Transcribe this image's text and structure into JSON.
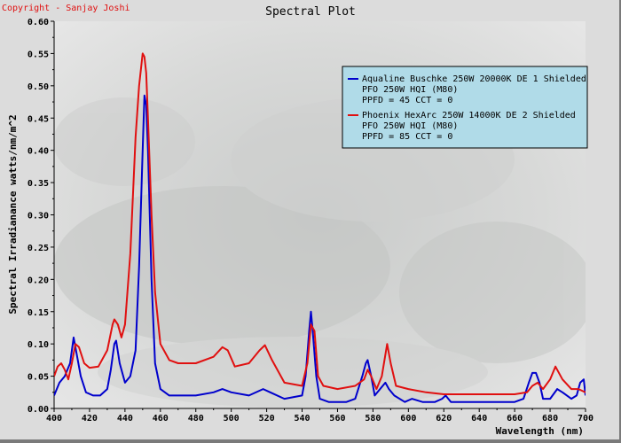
{
  "copyright": "Copyright - Sanjay Joshi",
  "chart_data": {
    "type": "line",
    "title": "Spectral Plot",
    "xlabel": "Wavelength (nm)",
    "ylabel": "Spectral Irradianance watts/nm/m^2",
    "xlim": [
      400,
      700
    ],
    "ylim": [
      0,
      0.6
    ],
    "xticks": [
      400,
      420,
      440,
      460,
      480,
      500,
      520,
      540,
      560,
      580,
      600,
      620,
      640,
      660,
      680,
      700
    ],
    "yticks": [
      0.0,
      0.05,
      0.1,
      0.15,
      0.2,
      0.25,
      0.3,
      0.35,
      0.4,
      0.45,
      0.5,
      0.55,
      0.6
    ],
    "ytick_labels": [
      "0.00",
      "0.05",
      "0.10",
      "0.15",
      "0.20",
      "0.25",
      "0.30",
      "0.35",
      "0.40",
      "0.45",
      "0.50",
      "0.55",
      "0.60"
    ],
    "grid": false,
    "legend_position": "top-right",
    "series": [
      {
        "name": "Aqualine Buschke 250W 20000K DE 1 Shielded",
        "legend_lines": [
          "Aqualine Buschke 250W 20000K DE 1 Shielded",
          "PFO 250W HQI (M80)",
          "PPFD = 45  CCT = 0"
        ],
        "color": "#0000cc",
        "x": [
          400,
          403,
          406,
          409,
          411,
          413,
          415,
          418,
          422,
          426,
          430,
          432,
          434,
          435,
          437,
          440,
          443,
          446,
          448,
          450,
          451,
          452,
          453,
          455,
          457,
          460,
          465,
          470,
          480,
          490,
          495,
          500,
          510,
          518,
          522,
          530,
          540,
          542,
          544,
          545,
          546,
          548,
          550,
          555,
          565,
          570,
          574,
          576,
          577,
          579,
          581,
          584,
          587,
          589,
          592,
          598,
          602,
          608,
          615,
          619,
          621,
          624,
          630,
          640,
          650,
          660,
          665,
          668,
          670,
          672,
          674,
          676,
          680,
          684,
          687,
          692,
          695,
          697,
          699,
          700
        ],
        "values": [
          0.02,
          0.04,
          0.05,
          0.07,
          0.11,
          0.08,
          0.05,
          0.025,
          0.02,
          0.02,
          0.03,
          0.06,
          0.1,
          0.105,
          0.07,
          0.04,
          0.05,
          0.09,
          0.22,
          0.4,
          0.485,
          0.47,
          0.4,
          0.2,
          0.07,
          0.03,
          0.02,
          0.02,
          0.02,
          0.025,
          0.03,
          0.025,
          0.02,
          0.03,
          0.025,
          0.015,
          0.02,
          0.05,
          0.12,
          0.15,
          0.12,
          0.05,
          0.015,
          0.01,
          0.01,
          0.015,
          0.05,
          0.07,
          0.075,
          0.05,
          0.02,
          0.03,
          0.04,
          0.03,
          0.02,
          0.01,
          0.015,
          0.01,
          0.01,
          0.015,
          0.02,
          0.01,
          0.01,
          0.01,
          0.01,
          0.01,
          0.015,
          0.04,
          0.055,
          0.055,
          0.04,
          0.015,
          0.015,
          0.03,
          0.025,
          0.015,
          0.02,
          0.04,
          0.045,
          0.02
        ]
      },
      {
        "name": "Phoenix HexArc 250W 14000K DE 2 Shielded",
        "legend_lines": [
          "Phoenix HexArc 250W 14000K DE 2 Shielded",
          "PFO 250W HQI (M80)",
          "PPFD = 85  CCT = 0"
        ],
        "color": "#e01010",
        "x": [
          400,
          402,
          404,
          406,
          408,
          410,
          412,
          414,
          417,
          420,
          425,
          430,
          433,
          434,
          436,
          438,
          440,
          443,
          446,
          448,
          450,
          451,
          452,
          453,
          455,
          457,
          460,
          465,
          470,
          480,
          490,
          495,
          498,
          502,
          510,
          516,
          519,
          523,
          530,
          540,
          543,
          545,
          547,
          549,
          552,
          560,
          570,
          575,
          577,
          579,
          582,
          585,
          588,
          590,
          593,
          600,
          610,
          620,
          640,
          660,
          667,
          670,
          673,
          676,
          680,
          683,
          687,
          692,
          696,
          700
        ],
        "values": [
          0.05,
          0.065,
          0.07,
          0.06,
          0.045,
          0.07,
          0.1,
          0.095,
          0.07,
          0.063,
          0.065,
          0.09,
          0.13,
          0.138,
          0.13,
          0.11,
          0.13,
          0.24,
          0.42,
          0.5,
          0.55,
          0.545,
          0.52,
          0.45,
          0.3,
          0.18,
          0.1,
          0.075,
          0.07,
          0.07,
          0.08,
          0.095,
          0.09,
          0.065,
          0.07,
          0.09,
          0.098,
          0.075,
          0.04,
          0.035,
          0.07,
          0.13,
          0.12,
          0.05,
          0.035,
          0.03,
          0.035,
          0.045,
          0.06,
          0.05,
          0.03,
          0.05,
          0.1,
          0.07,
          0.035,
          0.03,
          0.025,
          0.022,
          0.022,
          0.022,
          0.025,
          0.035,
          0.04,
          0.03,
          0.045,
          0.065,
          0.045,
          0.03,
          0.03,
          0.025
        ]
      }
    ]
  }
}
